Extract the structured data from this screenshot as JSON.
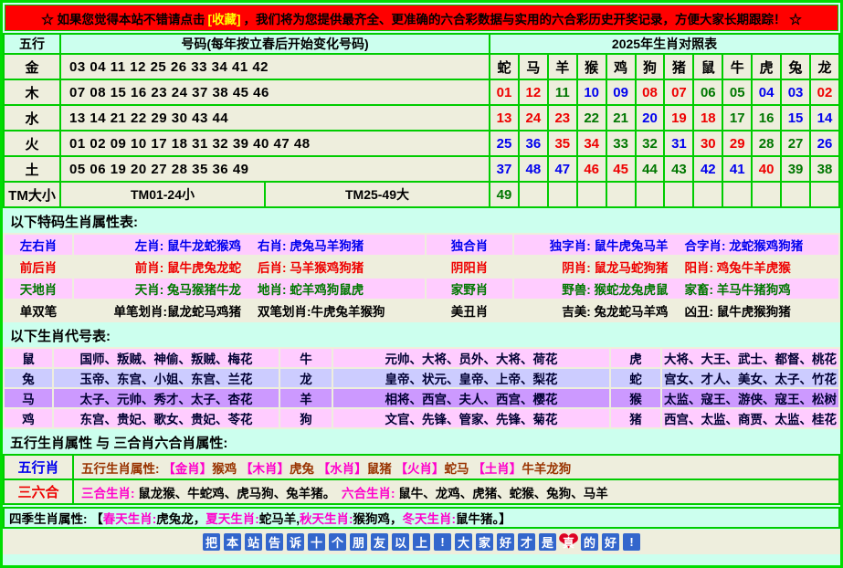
{
  "banner": {
    "text_before": "☆ 如果您觉得本站不错请点击",
    "highlight": "[收藏]",
    "text_after": "，我们将为您提供最齐全、更准确的六合彩数据与实用的六合彩历史开奖记录，方便大家长期跟踪！ ☆"
  },
  "main_table": {
    "header": {
      "col_element": "五行",
      "col_numbers": "号码(每年按立春后开始变化号码)",
      "col_zodiac": "2025年生肖对照表"
    },
    "rows": [
      {
        "element": "金",
        "numbers": "03 04 11 12 25 26 33 34 41 42",
        "cells": [
          {
            "t": "蛇",
            "c": "k"
          },
          {
            "t": "马",
            "c": "k"
          },
          {
            "t": "羊",
            "c": "k"
          },
          {
            "t": "猴",
            "c": "k"
          },
          {
            "t": "鸡",
            "c": "k"
          },
          {
            "t": "狗",
            "c": "k"
          },
          {
            "t": "猪",
            "c": "k"
          },
          {
            "t": "鼠",
            "c": "k"
          },
          {
            "t": "牛",
            "c": "k"
          },
          {
            "t": "虎",
            "c": "k"
          },
          {
            "t": "兔",
            "c": "k"
          },
          {
            "t": "龙",
            "c": "k"
          }
        ]
      },
      {
        "element": "木",
        "numbers": "07 08 15 16 23 24 37 38 45 46",
        "cells": [
          {
            "t": "01",
            "c": "r"
          },
          {
            "t": "12",
            "c": "r"
          },
          {
            "t": "11",
            "c": "g"
          },
          {
            "t": "10",
            "c": "b"
          },
          {
            "t": "09",
            "c": "b"
          },
          {
            "t": "08",
            "c": "r"
          },
          {
            "t": "07",
            "c": "r"
          },
          {
            "t": "06",
            "c": "g"
          },
          {
            "t": "05",
            "c": "g"
          },
          {
            "t": "04",
            "c": "b"
          },
          {
            "t": "03",
            "c": "b"
          },
          {
            "t": "02",
            "c": "r"
          }
        ]
      },
      {
        "element": "水",
        "numbers": "13 14 21 22 29 30 43 44",
        "cells": [
          {
            "t": "13",
            "c": "r"
          },
          {
            "t": "24",
            "c": "r"
          },
          {
            "t": "23",
            "c": "r"
          },
          {
            "t": "22",
            "c": "g"
          },
          {
            "t": "21",
            "c": "g"
          },
          {
            "t": "20",
            "c": "b"
          },
          {
            "t": "19",
            "c": "r"
          },
          {
            "t": "18",
            "c": "r"
          },
          {
            "t": "17",
            "c": "g"
          },
          {
            "t": "16",
            "c": "g"
          },
          {
            "t": "15",
            "c": "b"
          },
          {
            "t": "14",
            "c": "b"
          }
        ]
      },
      {
        "element": "火",
        "numbers": "01 02 09 10 17 18 31 32 39 40 47 48",
        "cells": [
          {
            "t": "25",
            "c": "b"
          },
          {
            "t": "36",
            "c": "b"
          },
          {
            "t": "35",
            "c": "r"
          },
          {
            "t": "34",
            "c": "r"
          },
          {
            "t": "33",
            "c": "g"
          },
          {
            "t": "32",
            "c": "g"
          },
          {
            "t": "31",
            "c": "b"
          },
          {
            "t": "30",
            "c": "r"
          },
          {
            "t": "29",
            "c": "r"
          },
          {
            "t": "28",
            "c": "g"
          },
          {
            "t": "27",
            "c": "g"
          },
          {
            "t": "26",
            "c": "b"
          }
        ]
      },
      {
        "element": "土",
        "numbers": "05 06 19 20 27 28 35 36 49",
        "cells": [
          {
            "t": "37",
            "c": "b"
          },
          {
            "t": "48",
            "c": "b"
          },
          {
            "t": "47",
            "c": "b"
          },
          {
            "t": "46",
            "c": "r"
          },
          {
            "t": "45",
            "c": "r"
          },
          {
            "t": "44",
            "c": "g"
          },
          {
            "t": "43",
            "c": "g"
          },
          {
            "t": "42",
            "c": "b"
          },
          {
            "t": "41",
            "c": "b"
          },
          {
            "t": "40",
            "c": "r"
          },
          {
            "t": "39",
            "c": "g"
          },
          {
            "t": "38",
            "c": "g"
          }
        ]
      }
    ],
    "tm_row": {
      "label": "TM大小",
      "small": "TM01-24小",
      "big": "TM25-49大",
      "cells": [
        {
          "t": "49",
          "c": "g"
        },
        {
          "t": "",
          "c": "k"
        },
        {
          "t": "",
          "c": "k"
        },
        {
          "t": "",
          "c": "k"
        },
        {
          "t": "",
          "c": "k"
        },
        {
          "t": "",
          "c": "k"
        },
        {
          "t": "",
          "c": "k"
        },
        {
          "t": "",
          "c": "k"
        },
        {
          "t": "",
          "c": "k"
        },
        {
          "t": "",
          "c": "k"
        },
        {
          "t": "",
          "c": "k"
        },
        {
          "t": "",
          "c": "k"
        }
      ]
    }
  },
  "section_titles": {
    "special": "以下特码生肖属性表:",
    "codes": "以下生肖代号表:",
    "wuxing": "五行生肖属性 与 三合肖六合肖属性:"
  },
  "special_table": {
    "rows": [
      {
        "color": "blue",
        "bg": "pink",
        "label1": "左右肖",
        "texts1": [
          "左肖: 鼠牛龙蛇猴鸡",
          "右肖: 虎兔马羊狗猪"
        ],
        "label2": "独合肖",
        "texts2": [
          "独字肖: 鼠牛虎兔马羊",
          "合字肖: 龙蛇猴鸡狗猪"
        ]
      },
      {
        "color": "red",
        "bg": "beige",
        "label1": "前后肖",
        "texts1": [
          "前肖: 鼠牛虎兔龙蛇",
          "后肖: 马羊猴鸡狗猪"
        ],
        "label2": "阴阳肖",
        "texts2": [
          "阴肖: 鼠龙马蛇狗猪",
          "阳肖: 鸡兔牛羊虎猴"
        ]
      },
      {
        "color": "green",
        "bg": "pink",
        "label1": "天地肖",
        "texts1": [
          "天肖: 兔马猴猪牛龙",
          "地肖: 蛇羊鸡狗鼠虎"
        ],
        "label2": "家野肖",
        "texts2": [
          "野兽: 猴蛇龙兔虎鼠",
          "家畜: 羊马牛猪狗鸡"
        ]
      },
      {
        "color": "black",
        "bg": "beige",
        "label1": "单双笔",
        "texts1": [
          "单笔划肖:鼠龙蛇马鸡猪",
          "双笔划肖:牛虎兔羊猴狗"
        ],
        "label2": "美丑肖",
        "texts2": [
          "吉美: 兔龙蛇马羊鸡",
          "凶丑: 鼠牛虎猴狗猪"
        ]
      }
    ]
  },
  "code_table": {
    "rows": [
      {
        "bg": "pink",
        "pairs": [
          {
            "a": "鼠",
            "t": "国师、叛贼、神偷、叛贼、梅花"
          },
          {
            "a": "牛",
            "t": "元帅、大将、员外、大将、荷花"
          },
          {
            "a": "虎",
            "t": "大将、大王、武士、都督、桃花"
          }
        ]
      },
      {
        "bg": "lav",
        "pairs": [
          {
            "a": "兔",
            "t": "玉帝、东宫、小姐、东宫、兰花"
          },
          {
            "a": "龙",
            "t": "皇帝、状元、皇帝、上帝、梨花"
          },
          {
            "a": "蛇",
            "t": "宫女、才人、美女、太子、竹花"
          }
        ]
      },
      {
        "bg": "pur",
        "pairs": [
          {
            "a": "马",
            "t": "太子、元帅、秀才、太子、杏花"
          },
          {
            "a": "羊",
            "t": "相将、西宫、夫人、西宫、樱花"
          },
          {
            "a": "猴",
            "t": "太监、寇王、游侠、寇王、松树"
          }
        ]
      },
      {
        "bg": "pink",
        "pairs": [
          {
            "a": "鸡",
            "t": "东宫、贵妃、歌女、贵妃、苓花"
          },
          {
            "a": "狗",
            "t": "文官、先锋、管家、先锋、菊花"
          },
          {
            "a": "猪",
            "t": "西宫、太监、商贾、太监、桂花"
          }
        ]
      }
    ]
  },
  "wuxing_table": {
    "rows": [
      {
        "label": "五行肖",
        "label_color": "blue",
        "segments": [
          {
            "t": "五行生肖属性: ",
            "c": "d"
          },
          {
            "t": "【金肖】",
            "c": "m"
          },
          {
            "t": "猴鸡 ",
            "c": "d"
          },
          {
            "t": "【木肖】",
            "c": "m"
          },
          {
            "t": "虎兔 ",
            "c": "d"
          },
          {
            "t": "【水肖】",
            "c": "m"
          },
          {
            "t": "鼠猪 ",
            "c": "d"
          },
          {
            "t": "【火肖】",
            "c": "m"
          },
          {
            "t": "蛇马 ",
            "c": "d"
          },
          {
            "t": "【土肖】",
            "c": "m"
          },
          {
            "t": "牛羊龙狗",
            "c": "d"
          }
        ]
      },
      {
        "label": "三六合",
        "label_color": "red",
        "segments": [
          {
            "t": "三合生肖: ",
            "c": "m"
          },
          {
            "t": "鼠龙猴、牛蛇鸡、虎马狗、兔羊猪。",
            "c": "k"
          },
          {
            "t": "　",
            "c": "k"
          },
          {
            "t": "六合生肖: ",
            "c": "m"
          },
          {
            "t": "鼠牛、龙鸡、虎猪、蛇猴、兔狗、马羊",
            "c": "k"
          }
        ]
      }
    ]
  },
  "seasons_row": {
    "segments": [
      {
        "t": "四季生肖属性: 【",
        "c": "k"
      },
      {
        "t": "春天生肖: ",
        "c": "m"
      },
      {
        "t": "虎兔龙，",
        "c": "k"
      },
      {
        "t": "夏天生肖: ",
        "c": "m"
      },
      {
        "t": "蛇马羊,",
        "c": "k"
      },
      {
        "t": "秋天生肖: ",
        "c": "m"
      },
      {
        "t": "猴狗鸡，",
        "c": "k"
      },
      {
        "t": "冬天生肖: ",
        "c": "m"
      },
      {
        "t": "鼠牛猪。】",
        "c": "k"
      }
    ]
  },
  "footer": {
    "tiles": [
      "把",
      "本",
      "站",
      "告",
      "诉",
      "十",
      "个",
      "朋",
      "友",
      "以",
      "上",
      "!",
      "大",
      "家",
      "好",
      "才",
      "是",
      "真",
      "的",
      "好",
      "!"
    ],
    "heart_char": "真"
  },
  "colors": {
    "border_green": "#00CC00",
    "banner_red": "#FF0000",
    "highlight_yellow": "#FFFF00",
    "ball_red": "#EE0000",
    "ball_blue": "#0000EE",
    "ball_green": "#007700",
    "magenta": "#FF00CC",
    "row_pink": "#FFCCFF",
    "row_lavender": "#CCCCFF",
    "row_purple": "#CC99FF",
    "cell_beige": "#EEEEDD",
    "page_cyan": "#CCFFEE",
    "tile_blue": "#3366CC"
  }
}
